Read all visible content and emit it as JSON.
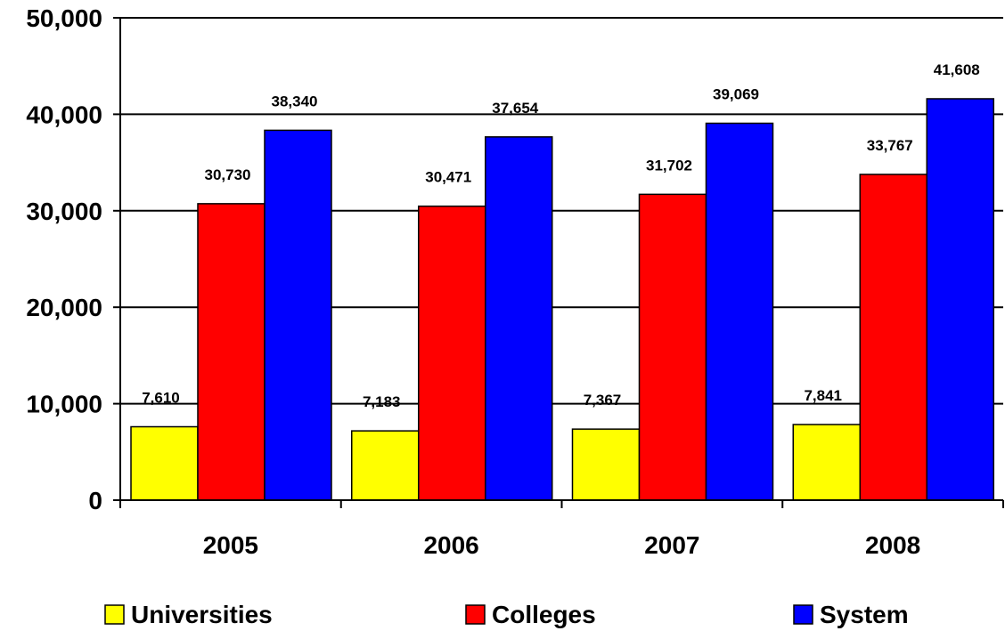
{
  "chart_data": {
    "type": "bar",
    "categories": [
      "2005",
      "2006",
      "2007",
      "2008"
    ],
    "series": [
      {
        "name": "Universities",
        "color": "#FFFF00",
        "values": [
          7610,
          7183,
          7367,
          7841
        ],
        "labels": [
          "7,610",
          "7,183",
          "7,367",
          "7,841"
        ]
      },
      {
        "name": "Colleges",
        "color": "#FF0000",
        "values": [
          30730,
          30471,
          31702,
          33767
        ],
        "labels": [
          "30,730",
          "30,471",
          "31,702",
          "33,767"
        ]
      },
      {
        "name": "System",
        "color": "#0000FF",
        "values": [
          38340,
          37654,
          39069,
          41608
        ],
        "labels": [
          "38,340",
          "37,654",
          "39,069",
          "41,608"
        ]
      }
    ],
    "ylim": [
      0,
      50000
    ],
    "yticks": [
      0,
      10000,
      20000,
      30000,
      40000,
      50000
    ],
    "ytick_labels": [
      "0",
      "10,000",
      "20,000",
      "30,000",
      "40,000",
      "50,000"
    ],
    "grid": true,
    "legend_position": "bottom"
  }
}
